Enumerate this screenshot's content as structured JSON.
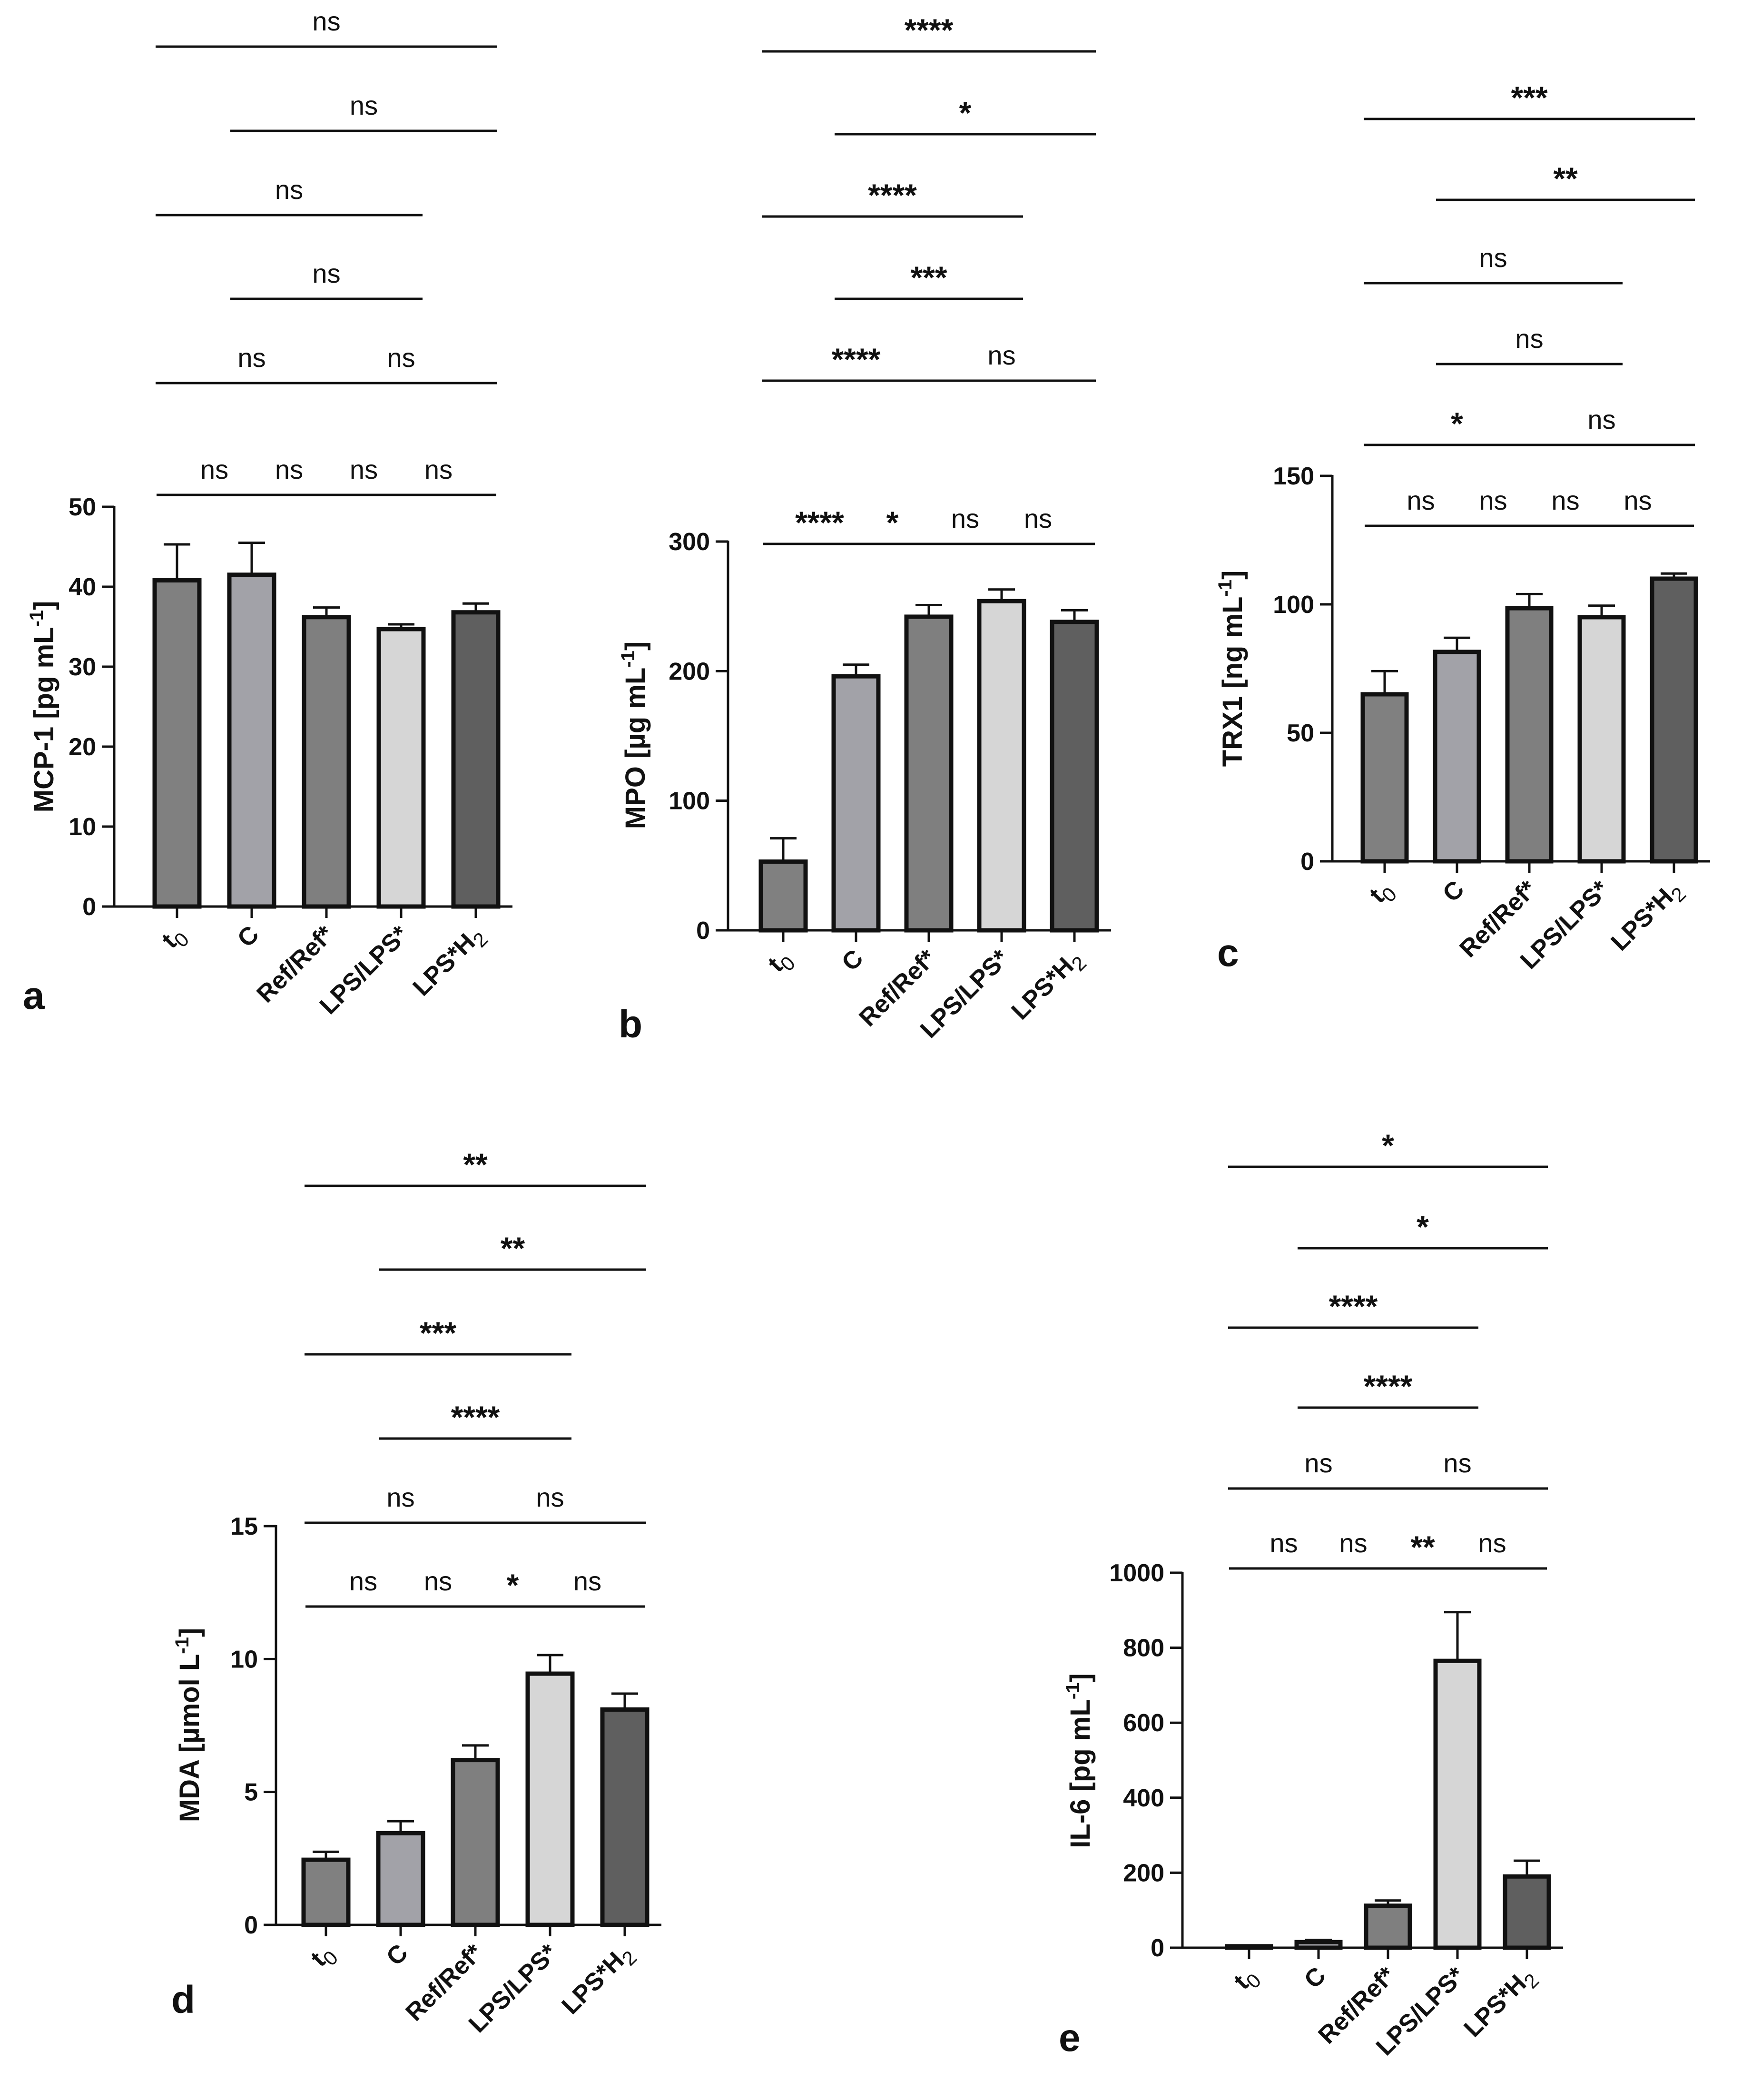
{
  "colors": {
    "t0": "#808080",
    "C": "#a2a2a8",
    "Ref": "#7f7f7f",
    "LPS": "#d6d6d6",
    "LPSH2": "#5f5f5f",
    "stroke": "#111111"
  },
  "chart_data": [
    {
      "type": "bar",
      "panel": "a",
      "ylabel": "MCP-1 [pg mL-1]",
      "ylabel_parts": [
        "MCP-1 [pg mL",
        "-1",
        "]"
      ],
      "ylim": [
        0,
        50
      ],
      "yticks": [
        "0",
        "10",
        "20",
        "30",
        "40",
        "50"
      ],
      "categories": [
        "t0",
        "C",
        "Ref/Ref*",
        "LPS/LPS*",
        "LPS*H2"
      ],
      "category_labels": [
        {
          "main": "t",
          "sub": "0",
          "rest": ""
        },
        {
          "main": "C",
          "sub": "",
          "rest": ""
        },
        {
          "main": "Ref/Ref*",
          "sub": "",
          "rest": ""
        },
        {
          "main": "LPS/LPS*",
          "sub": "",
          "rest": ""
        },
        {
          "main": "LPS*H",
          "sub": "2",
          "rest": ""
        }
      ],
      "values": [
        40.8,
        41.5,
        36.2,
        34.7,
        36.8
      ],
      "errors": [
        4.5,
        4.0,
        1.2,
        0.6,
        1.1
      ],
      "significance": [
        {
          "from": 0,
          "to": 4,
          "label": "ns"
        },
        {
          "from": 1,
          "to": 4,
          "label": "ns"
        },
        {
          "from": 0,
          "to": 3,
          "label": "ns"
        },
        {
          "from": 1,
          "to": 3,
          "label": "ns"
        },
        {
          "from": 0,
          "to": 2,
          "label": "ns"
        },
        {
          "from": 2,
          "to": 4,
          "label": "ns"
        },
        {
          "from": 0,
          "to": 1,
          "label": "ns"
        },
        {
          "from": 1,
          "to": 2,
          "label": "ns"
        },
        {
          "from": 2,
          "to": 3,
          "label": "ns"
        },
        {
          "from": 3,
          "to": 4,
          "label": "ns"
        }
      ]
    },
    {
      "type": "bar",
      "panel": "b",
      "ylabel": "MPO [µg mL-1]",
      "ylabel_parts": [
        "MPO [µg mL",
        "-1",
        "]"
      ],
      "ylim": [
        0,
        300
      ],
      "yticks": [
        "0",
        "100",
        "200",
        "300"
      ],
      "categories": [
        "t0",
        "C",
        "Ref/Ref*",
        "LPS/LPS*",
        "LPS*H2"
      ],
      "category_labels": [
        {
          "main": "t",
          "sub": "0",
          "rest": ""
        },
        {
          "main": "C",
          "sub": "",
          "rest": ""
        },
        {
          "main": "Ref/Ref*",
          "sub": "",
          "rest": ""
        },
        {
          "main": "LPS/LPS*",
          "sub": "",
          "rest": ""
        },
        {
          "main": "LPS*H",
          "sub": "2",
          "rest": ""
        }
      ],
      "values": [
        53,
        196,
        242,
        254,
        238
      ],
      "errors": [
        18,
        9,
        9,
        9,
        9
      ],
      "significance": [
        {
          "from": 0,
          "to": 4,
          "label": "****"
        },
        {
          "from": 1,
          "to": 4,
          "label": "*"
        },
        {
          "from": 0,
          "to": 3,
          "label": "****"
        },
        {
          "from": 1,
          "to": 3,
          "label": "***"
        },
        {
          "from": 0,
          "to": 2,
          "label": "****"
        },
        {
          "from": 1,
          "to": 2,
          "label": "*"
        },
        {
          "from": 2,
          "to": 4,
          "label": "ns"
        },
        {
          "from": 0,
          "to": 1,
          "label": "****"
        },
        {
          "from": 2,
          "to": 3,
          "label": "ns"
        },
        {
          "from": 3,
          "to": 4,
          "label": "ns"
        }
      ]
    },
    {
      "type": "bar",
      "panel": "c",
      "ylabel": "TRX1 [ng mL-1]",
      "ylabel_parts": [
        "TRX1 [ng mL",
        "-1",
        "]"
      ],
      "ylim": [
        0,
        150
      ],
      "yticks": [
        "0",
        "50",
        "100",
        "150"
      ],
      "categories": [
        "t0",
        "C",
        "Ref/Ref*",
        "LPS/LPS*",
        "LPS*H2"
      ],
      "category_labels": [
        {
          "main": "t",
          "sub": "0",
          "rest": ""
        },
        {
          "main": "C",
          "sub": "",
          "rest": ""
        },
        {
          "main": "Ref/Ref*",
          "sub": "",
          "rest": ""
        },
        {
          "main": "LPS/LPS*",
          "sub": "",
          "rest": ""
        },
        {
          "main": "LPS*H",
          "sub": "2",
          "rest": ""
        }
      ],
      "values": [
        65,
        81.5,
        98.5,
        95,
        110
      ],
      "errors": [
        9,
        5.5,
        5.5,
        4.5,
        2
      ],
      "significance": [
        {
          "from": 0,
          "to": 4,
          "label": "***"
        },
        {
          "from": 1,
          "to": 4,
          "label": "**"
        },
        {
          "from": 0,
          "to": 3,
          "label": "ns"
        },
        {
          "from": 1,
          "to": 3,
          "label": "ns"
        },
        {
          "from": 0,
          "to": 2,
          "label": "*"
        },
        {
          "from": 2,
          "to": 4,
          "label": "ns"
        },
        {
          "from": 0,
          "to": 1,
          "label": "ns"
        },
        {
          "from": 1,
          "to": 2,
          "label": "ns"
        },
        {
          "from": 2,
          "to": 3,
          "label": "ns"
        },
        {
          "from": 3,
          "to": 4,
          "label": "ns"
        }
      ]
    },
    {
      "type": "bar",
      "panel": "d",
      "ylabel": "MDA [µmol L-1]",
      "ylabel_parts": [
        "MDA [µmol L",
        "-1",
        "]"
      ],
      "ylim": [
        0,
        15
      ],
      "yticks": [
        "0",
        "5",
        "10",
        "15"
      ],
      "categories": [
        "t0",
        "C",
        "Ref/Ref*",
        "LPS/LPS*",
        "LPS*H2"
      ],
      "category_labels": [
        {
          "main": "t",
          "sub": "0",
          "rest": ""
        },
        {
          "main": "C",
          "sub": "",
          "rest": ""
        },
        {
          "main": "Ref/Ref*",
          "sub": "",
          "rest": ""
        },
        {
          "main": "LPS/LPS*",
          "sub": "",
          "rest": ""
        },
        {
          "main": "LPS*H",
          "sub": "2",
          "rest": ""
        }
      ],
      "values": [
        2.45,
        3.45,
        6.2,
        9.45,
        8.1
      ],
      "errors": [
        0.3,
        0.45,
        0.55,
        0.7,
        0.6
      ],
      "significance": [
        {
          "from": 0,
          "to": 4,
          "label": "**"
        },
        {
          "from": 1,
          "to": 4,
          "label": "**"
        },
        {
          "from": 0,
          "to": 3,
          "label": "***"
        },
        {
          "from": 1,
          "to": 3,
          "label": "****"
        },
        {
          "from": 0,
          "to": 2,
          "label": "ns"
        },
        {
          "from": 2,
          "to": 4,
          "label": "ns"
        },
        {
          "from": 0,
          "to": 1,
          "label": "ns"
        },
        {
          "from": 1,
          "to": 2,
          "label": "ns"
        },
        {
          "from": 2,
          "to": 3,
          "label": "*"
        },
        {
          "from": 3,
          "to": 4,
          "label": "ns"
        }
      ]
    },
    {
      "type": "bar",
      "panel": "e",
      "ylabel": "IL-6 [pg mL-1]",
      "ylabel_parts": [
        "IL-6 [pg mL",
        "-1",
        "]"
      ],
      "ylim": [
        0,
        1000
      ],
      "yticks": [
        "0",
        "200",
        "400",
        "600",
        "800",
        "1000"
      ],
      "categories": [
        "t0",
        "C",
        "Ref/Ref*",
        "LPS/LPS*",
        "LPS*H2"
      ],
      "category_labels": [
        {
          "main": "t",
          "sub": "0",
          "rest": ""
        },
        {
          "main": "C",
          "sub": "",
          "rest": ""
        },
        {
          "main": "Ref/Ref*",
          "sub": "",
          "rest": ""
        },
        {
          "main": "LPS/LPS*",
          "sub": "",
          "rest": ""
        },
        {
          "main": "LPS*H",
          "sub": "2",
          "rest": ""
        }
      ],
      "values": [
        4,
        15,
        112,
        765,
        190
      ],
      "errors": [
        2,
        6,
        14,
        130,
        42
      ],
      "significance": [
        {
          "from": 0,
          "to": 4,
          "label": "*"
        },
        {
          "from": 1,
          "to": 4,
          "label": "*"
        },
        {
          "from": 0,
          "to": 3,
          "label": "****"
        },
        {
          "from": 1,
          "to": 3,
          "label": "****"
        },
        {
          "from": 0,
          "to": 2,
          "label": "ns"
        },
        {
          "from": 2,
          "to": 4,
          "label": "ns"
        },
        {
          "from": 0,
          "to": 1,
          "label": "ns"
        },
        {
          "from": 1,
          "to": 2,
          "label": "ns"
        },
        {
          "from": 2,
          "to": 3,
          "label": "**"
        },
        {
          "from": 3,
          "to": 4,
          "label": "ns"
        }
      ]
    }
  ]
}
